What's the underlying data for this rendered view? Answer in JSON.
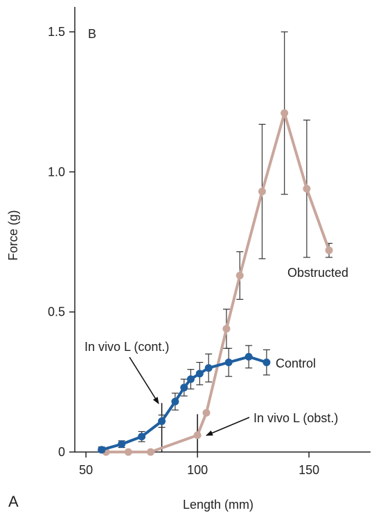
{
  "chart_data": {
    "type": "line",
    "panel_label": "B",
    "corner_label": "A",
    "xlabel": "Length (mm)",
    "ylabel": "Force (g)",
    "xlim": [
      50,
      175
    ],
    "ylim": [
      0,
      1.5
    ],
    "xticks": [
      {
        "value": 50,
        "label": "50"
      },
      {
        "value": 100,
        "label": "100"
      },
      {
        "value": 150,
        "label": "150"
      }
    ],
    "yticks": [
      {
        "value": 0,
        "label": "0"
      },
      {
        "value": 0.5,
        "label": "0.5"
      },
      {
        "value": 1.0,
        "label": "1.0"
      },
      {
        "value": 1.5,
        "label": "1.5"
      }
    ],
    "grid": false,
    "series": [
      {
        "name": "Control",
        "color": "#1f5fa0",
        "x": [
          57,
          66,
          75,
          84,
          90,
          94,
          97,
          101,
          105,
          114,
          123,
          131
        ],
        "y": [
          0.008,
          0.028,
          0.055,
          0.11,
          0.18,
          0.23,
          0.26,
          0.28,
          0.3,
          0.32,
          0.34,
          0.32
        ],
        "err": [
          0.01,
          0.012,
          0.018,
          0.022,
          0.03,
          0.03,
          0.035,
          0.04,
          0.05,
          0.05,
          0.04,
          0.045
        ]
      },
      {
        "name": "Obstructed",
        "color": "#c9a69c",
        "x": [
          59,
          69,
          79,
          100,
          104,
          113,
          119,
          129,
          139,
          149,
          159
        ],
        "y": [
          0.0,
          0.0,
          0.0,
          0.06,
          0.14,
          0.44,
          0.63,
          0.93,
          1.21,
          0.94,
          0.72
        ],
        "err": [
          0.0,
          0.0,
          0.0,
          0.0,
          0.0,
          0.07,
          0.085,
          0.24,
          0.29,
          0.245,
          0.025
        ]
      }
    ],
    "reference_lines": [
      {
        "x": 84,
        "y_top": 0.175
      },
      {
        "x": 100,
        "y_top": 0.135
      }
    ],
    "annotations": [
      {
        "text": "Control"
      },
      {
        "text": "Obstructed"
      },
      {
        "text": "In vivo L (cont.)"
      },
      {
        "text": "In vivo L (obst.)"
      }
    ]
  }
}
